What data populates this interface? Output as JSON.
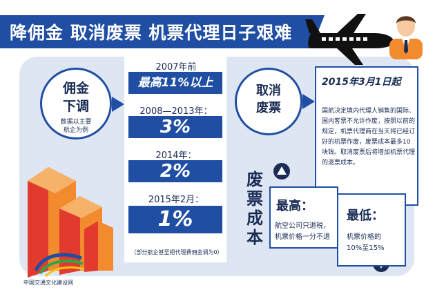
{
  "header": {
    "title": "降佣金 取消废票 机票代理日子艰难"
  },
  "commission": {
    "title": "佣金\n下调",
    "note": "数据以主要\n航企为例"
  },
  "timeline": [
    {
      "year": "2007年前",
      "value": "最高11%以上"
    },
    {
      "year": "2008—2013年：",
      "value": "3%"
    },
    {
      "year": "2014年：",
      "value": "2%"
    },
    {
      "year": "2015年2月：",
      "value": "1%"
    }
  ],
  "timeline_note": "（部分航企甚至把代理费佣金调为0）",
  "cancel": {
    "title": "取消\n废票"
  },
  "notice": {
    "date": "2015年3月1日起",
    "body": "国航决定境内代理人销售的国际、国内客票不允许作废，按照以前的规定，机票代理商在当天将已经订好的机票作废，废票成本最多10块钱。取消废票后将增加机票代理的退票成本。"
  },
  "cost": {
    "label": "废票成本",
    "high_title": "最高：",
    "high_body_1": "航空公司只退税，",
    "high_body_2": "机票价格一分不退",
    "low_title": "最低：",
    "low_body_1": "机票价格的",
    "low_body_2": "10%至15%"
  },
  "logo": {
    "text": "中国交通文化建设网"
  },
  "colors": {
    "primary": "#1f4ea3",
    "dark": "#1a2c55",
    "panel": "#dfe6f3",
    "accent_red": "#e23b2e",
    "accent_orange": "#f28a2e"
  }
}
